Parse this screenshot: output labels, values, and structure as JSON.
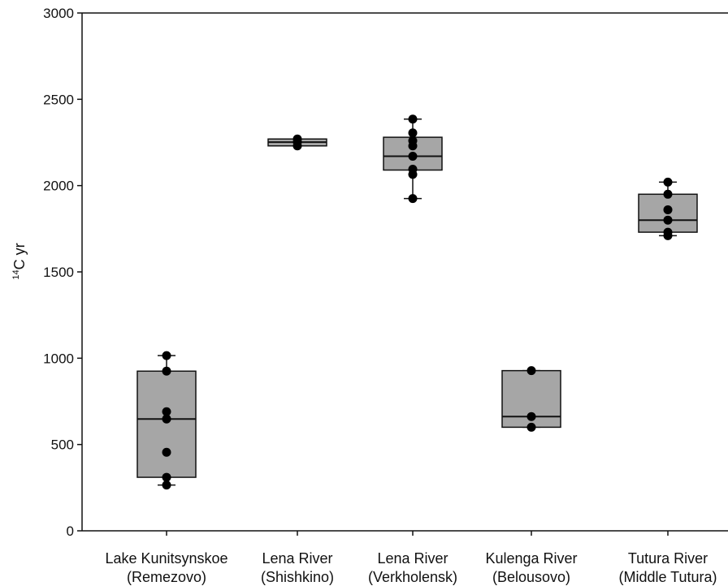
{
  "chart_data": {
    "type": "box",
    "title": "",
    "xlabel": "",
    "ylabel": {
      "superscript": "14",
      "text": "C yr"
    },
    "ylim": [
      0,
      3000
    ],
    "yticks": [
      0,
      500,
      1000,
      1500,
      2000,
      2500,
      3000
    ],
    "ytick_labels": [
      "0",
      "500",
      "1000",
      "1500",
      "2000",
      "2500",
      "3000"
    ],
    "grid": false,
    "colors": {
      "box_fill": "#a6a6a6",
      "stroke": "#111111",
      "point": "#000000"
    },
    "categories": [
      {
        "line1": "Lake Kunitsynskoe",
        "line2": "(Remezovo)"
      },
      {
        "line1": "Lena River",
        "line2": "(Shishkino)"
      },
      {
        "line1": "Lena River",
        "line2": "(Verkholensk)"
      },
      {
        "line1": "Kulenga River",
        "line2": "(Belousovo)"
      },
      {
        "line1": "Tutura River",
        "line2": "(Middle Tutura)"
      }
    ],
    "boxes": [
      {
        "whisker_low": 265,
        "q1": 310,
        "median": 648,
        "q3": 925,
        "whisker_high": 1015,
        "points": [
          265,
          310,
          455,
          648,
          690,
          925,
          1015
        ]
      },
      {
        "whisker_low": 2230,
        "q1": 2230,
        "median": 2252,
        "q3": 2270,
        "whisker_high": 2270,
        "points": [
          2230,
          2252,
          2270
        ]
      },
      {
        "whisker_low": 1925,
        "q1": 2090,
        "median": 2170,
        "q3": 2280,
        "whisker_high": 2385,
        "points": [
          1925,
          2065,
          2095,
          2170,
          2230,
          2260,
          2305,
          2385
        ]
      },
      {
        "whisker_low": 600,
        "q1": 600,
        "median": 662,
        "q3": 928,
        "whisker_high": 928,
        "points": [
          600,
          662,
          928
        ]
      },
      {
        "whisker_low": 1710,
        "q1": 1730,
        "median": 1800,
        "q3": 1950,
        "whisker_high": 2020,
        "points": [
          1710,
          1730,
          1800,
          1860,
          1950,
          2020
        ]
      }
    ]
  }
}
